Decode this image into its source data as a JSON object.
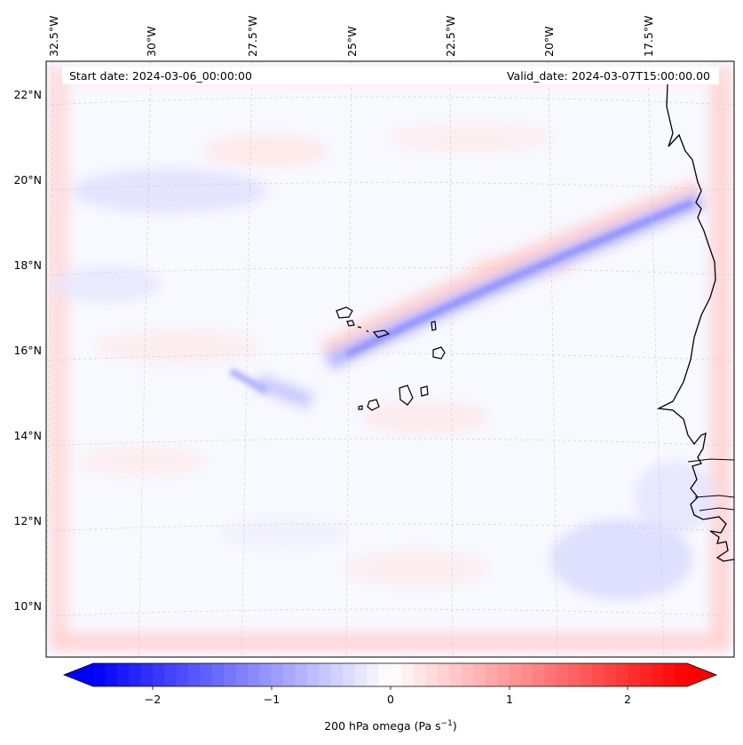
{
  "map": {
    "start_date": "Start date: 2024-03-06_00:00:00",
    "valid_date": "Valid_date: 2024-03-07T15:00:00.00",
    "lon_labels": [
      "32.5°W",
      "30°W",
      "27.5°W",
      "25°W",
      "22.5°W",
      "20°W",
      "17.5°W"
    ],
    "lat_labels": [
      "22°N",
      "20°N",
      "18°N",
      "16°N",
      "14°N",
      "12°N",
      "10°N"
    ]
  },
  "colorbar": {
    "ticks": [
      "−2",
      "−1",
      "0",
      "1",
      "2"
    ],
    "label_prefix": "200 hPa omega (Pa s",
    "label_sup": "−1",
    "label_suffix": ")",
    "colors": {
      "min": "#0000ff",
      "mid": "#ffffff",
      "max": "#ff0000"
    }
  }
}
